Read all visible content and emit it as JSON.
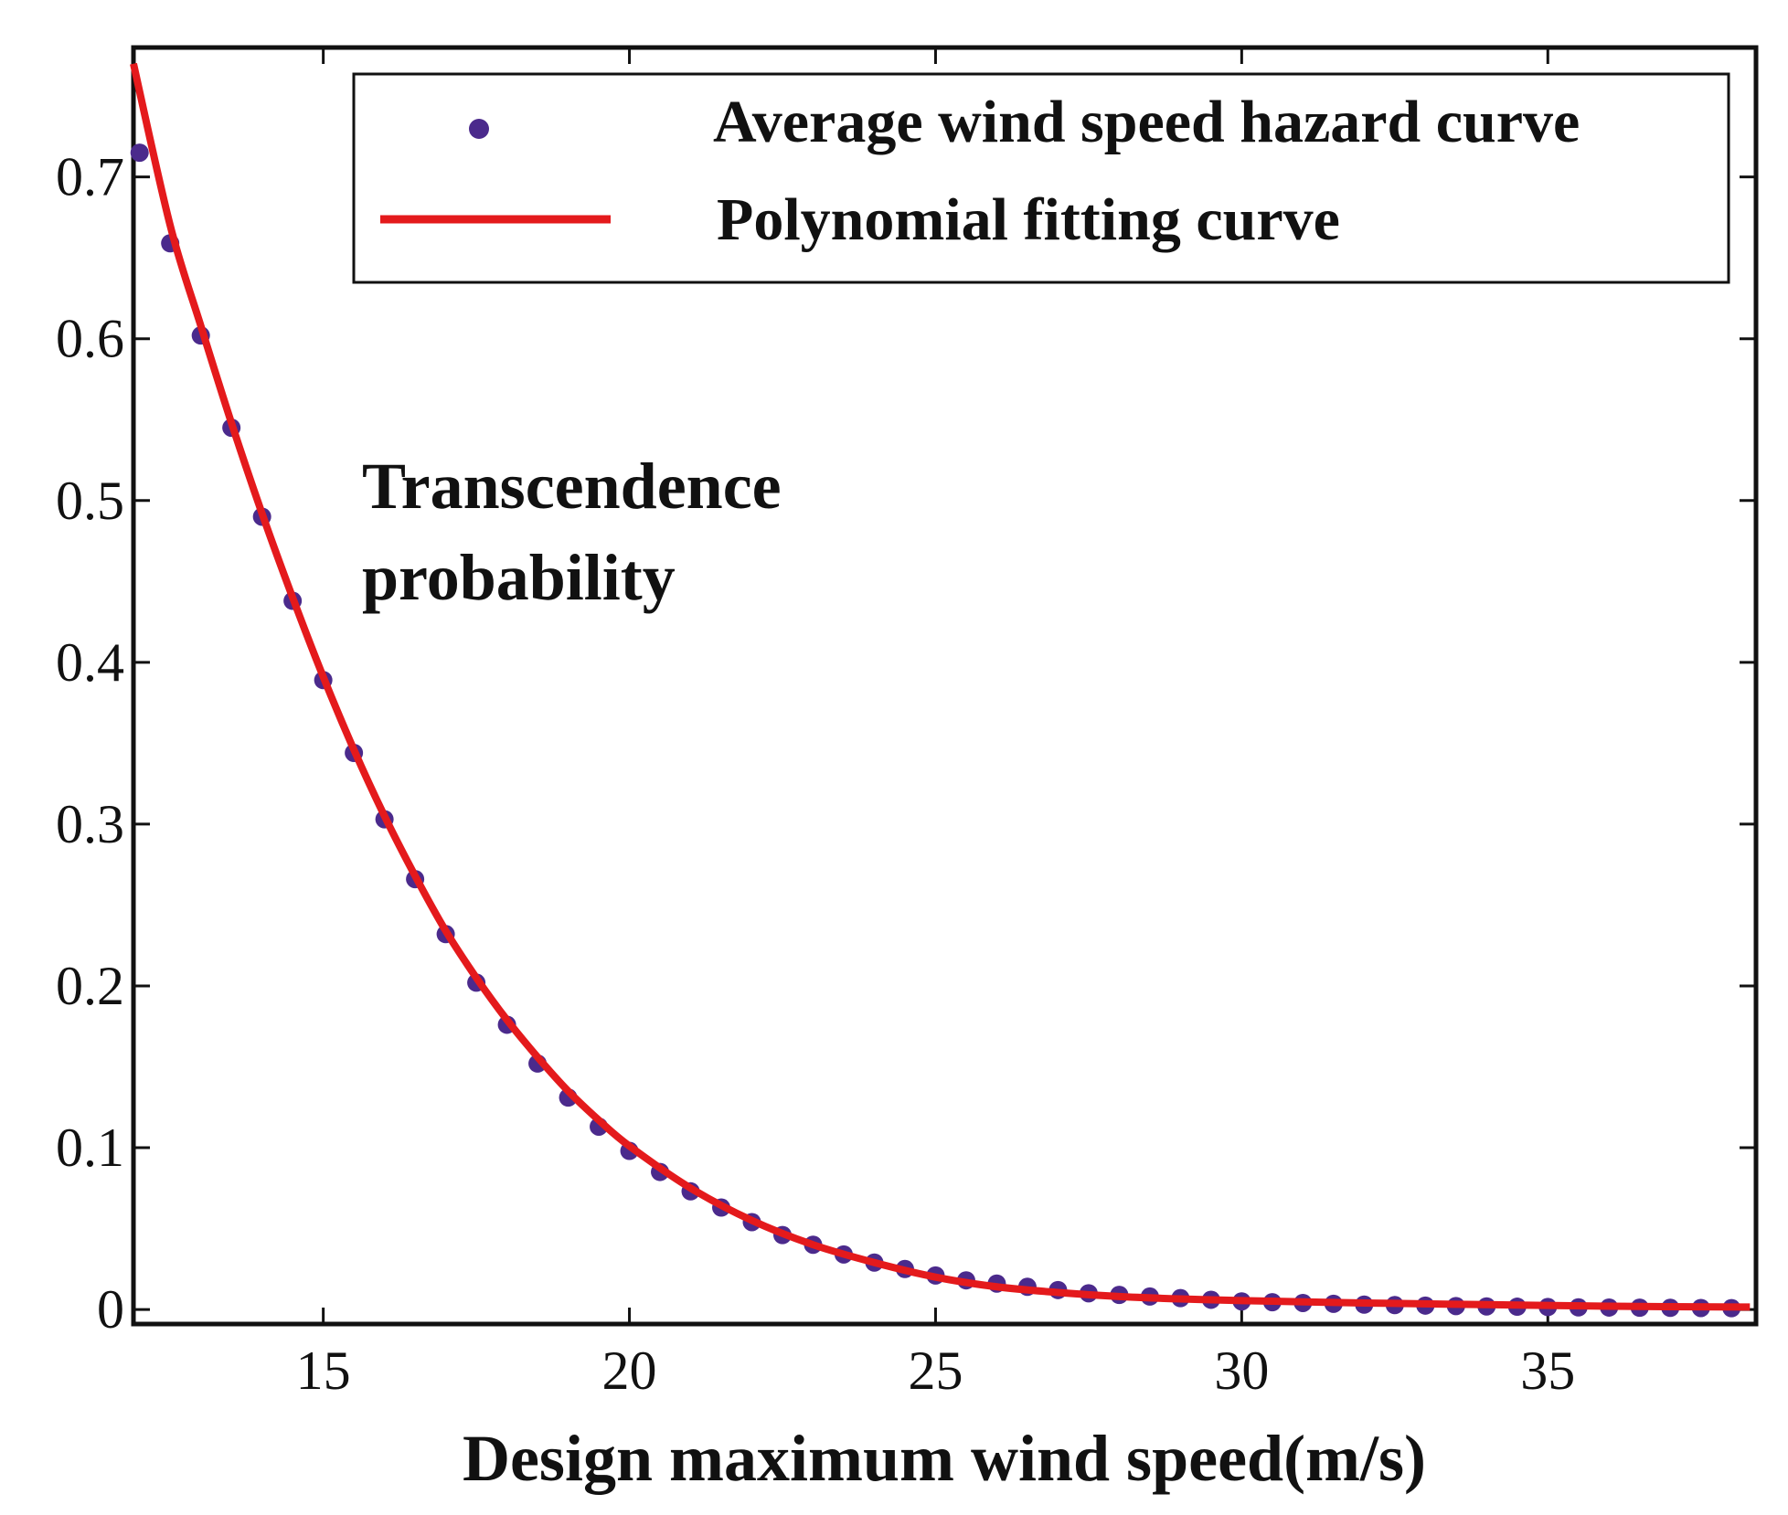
{
  "chart_data": {
    "type": "scatter",
    "xlabel": "Design maximum wind speed(m/s)",
    "ylabel": "",
    "xlim": [
      11.9,
      38.4
    ],
    "ylim": [
      -0.009,
      0.78
    ],
    "xticks": [
      15,
      20,
      25,
      30,
      35
    ],
    "xtick_labels": [
      "15",
      "20",
      "25",
      "30",
      "35"
    ],
    "yticks": [
      0,
      0.1,
      0.2,
      0.3,
      0.4,
      0.5,
      0.6,
      0.7
    ],
    "ytick_labels": [
      "0",
      "0.1",
      "0.2",
      "0.3",
      "0.4",
      "0.5",
      "0.6",
      "0.7"
    ],
    "annotation": [
      "Transcendence",
      "probability"
    ],
    "grid": false,
    "legend_position": "top-right",
    "series": [
      {
        "name": "Average wind speed hazard curve",
        "kind": "scatter",
        "color": "#4b2a8c",
        "x": [
          12,
          12.5,
          13,
          13.5,
          14,
          14.5,
          15,
          15.5,
          16,
          16.5,
          17,
          17.5,
          18,
          18.5,
          19,
          19.5,
          20,
          20.5,
          21,
          21.5,
          22,
          22.5,
          23,
          23.5,
          24,
          24.5,
          25,
          25.5,
          26,
          26.5,
          27,
          27.5,
          28,
          28.5,
          29,
          29.5,
          30,
          30.5,
          31,
          31.5,
          32,
          32.5,
          33,
          33.5,
          34,
          34.5,
          35,
          35.5,
          36,
          36.5,
          37,
          37.5,
          38
        ],
        "y": [
          0.715,
          0.659,
          0.602,
          0.545,
          0.49,
          0.438,
          0.389,
          0.344,
          0.303,
          0.266,
          0.232,
          0.202,
          0.176,
          0.152,
          0.131,
          0.113,
          0.098,
          0.085,
          0.073,
          0.063,
          0.054,
          0.046,
          0.04,
          0.034,
          0.029,
          0.025,
          0.021,
          0.018,
          0.016,
          0.014,
          0.012,
          0.01,
          0.009,
          0.008,
          0.007,
          0.006,
          0.005,
          0.0045,
          0.004,
          0.0035,
          0.003,
          0.0027,
          0.0024,
          0.0021,
          0.0019,
          0.0017,
          0.0015,
          0.0013,
          0.0012,
          0.0011,
          0.001,
          0.0009,
          0.0008
        ]
      },
      {
        "name": "Polynomial fitting curve",
        "kind": "line",
        "color": "#e41a1c",
        "x": [
          11.9,
          12.5,
          13,
          13.5,
          14,
          14.5,
          15,
          15.5,
          16,
          16.5,
          17,
          17.5,
          18,
          18.5,
          19,
          19.5,
          20,
          21,
          22,
          23,
          24,
          25,
          26,
          27,
          28,
          29,
          30,
          32,
          34,
          36,
          38.3
        ],
        "y": [
          0.77,
          0.67,
          0.608,
          0.548,
          0.492,
          0.44,
          0.391,
          0.346,
          0.305,
          0.268,
          0.234,
          0.205,
          0.179,
          0.156,
          0.135,
          0.117,
          0.101,
          0.075,
          0.055,
          0.04,
          0.029,
          0.02,
          0.014,
          0.0105,
          0.008,
          0.0065,
          0.0055,
          0.004,
          0.003,
          0.002,
          0.0015
        ]
      }
    ]
  }
}
